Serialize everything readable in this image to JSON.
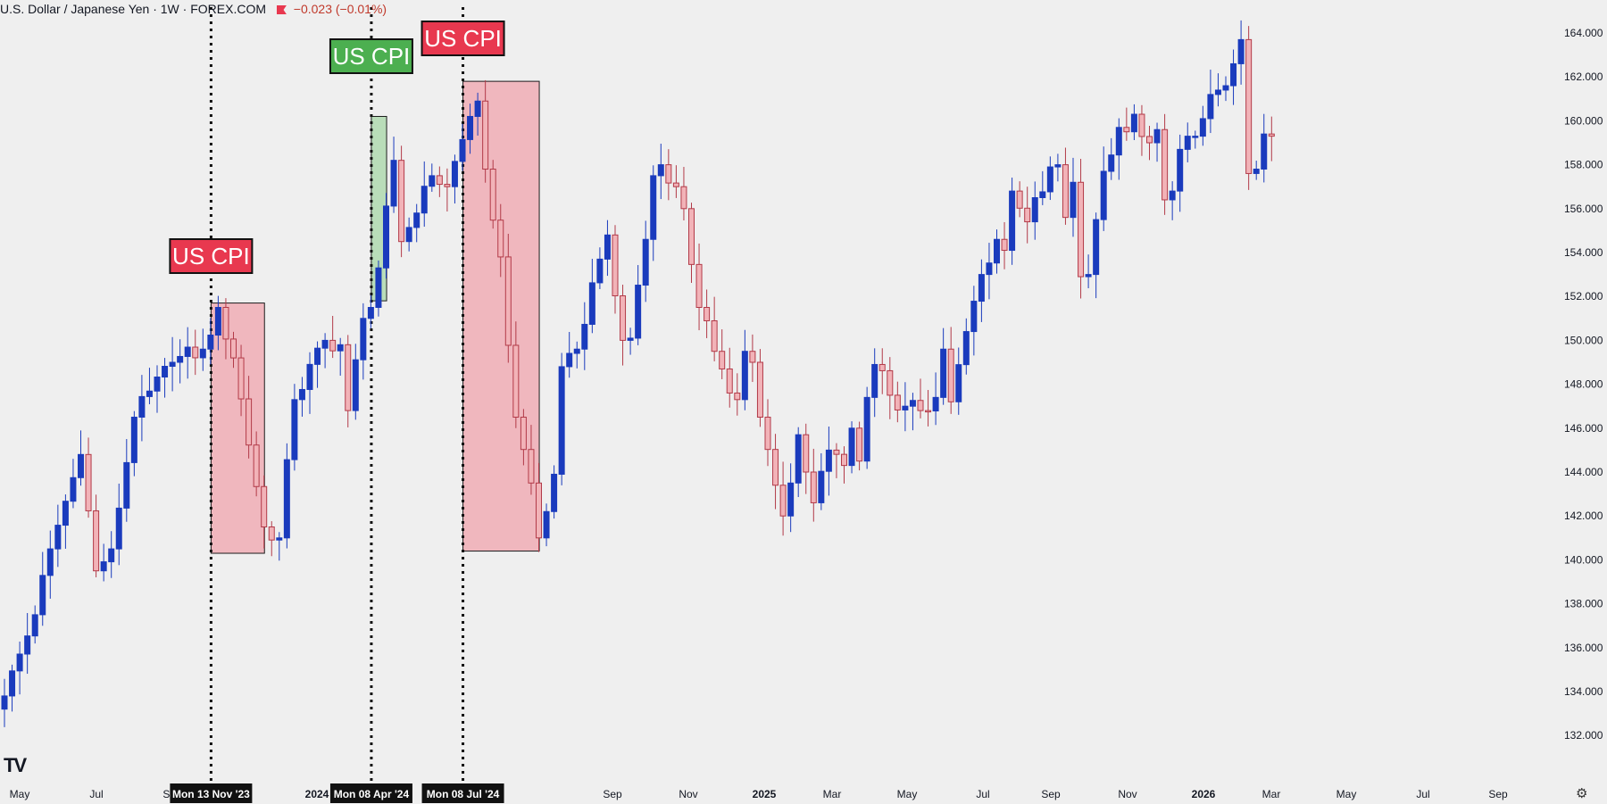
{
  "header": {
    "symbol": "U.S. Dollar / Japanese Yen · 1W · FOREX.COM",
    "change": "−0.023 (−0.01%)"
  },
  "annotations": {
    "label_1": "US CPI",
    "label_2": "US CPI",
    "label_3": "US CPI",
    "date_1": "Mon 13 Nov '23",
    "date_2": "Mon 08 Apr '24",
    "date_3": "Mon 08 Jul '24"
  },
  "colors": {
    "background": "#efefef",
    "up_candle": "#1a3bbd",
    "down_candle": "#f2b3b8",
    "down_border": "#b23a48",
    "red_zone": "#f1b5bc",
    "green_zone": "#b7ddb7",
    "red_label": "#e8384f",
    "green_label": "#4caf50"
  },
  "icons": {
    "logo": "tradingview-logo-icon",
    "settings": "gear-icon"
  },
  "chart_data": {
    "type": "candlestick",
    "title": "U.S. Dollar / Japanese Yen · 1W · FOREX.COM",
    "ylim": [
      131,
      165
    ],
    "y_ticks": [
      "132.000",
      "134.000",
      "136.000",
      "138.000",
      "140.000",
      "142.000",
      "144.000",
      "146.000",
      "148.000",
      "150.000",
      "152.000",
      "154.000",
      "156.000",
      "158.000",
      "160.000",
      "162.000",
      "164.000"
    ],
    "x_ticks": [
      "May",
      "Jul",
      "Sep",
      "2024",
      "M",
      "Sep",
      "Nov",
      "2025",
      "Mar",
      "May",
      "Jul",
      "Sep",
      "Nov",
      "2026",
      "Mar",
      "May",
      "Jul",
      "Sep"
    ],
    "grid": false,
    "waypoints": [
      {
        "i": 0,
        "p": 133.8
      },
      {
        "i": 4,
        "p": 137.5
      },
      {
        "i": 6,
        "p": 140.5
      },
      {
        "i": 10,
        "p": 144.8
      },
      {
        "i": 12,
        "p": 139.5
      },
      {
        "i": 14,
        "p": 140.5
      },
      {
        "i": 17,
        "p": 146.5
      },
      {
        "i": 22,
        "p": 149.0
      },
      {
        "i": 26,
        "p": 149.6
      },
      {
        "i": 28,
        "p": 151.5
      },
      {
        "i": 30,
        "p": 149.2
      },
      {
        "i": 34,
        "p": 141.5
      },
      {
        "i": 36,
        "p": 141.0
      },
      {
        "i": 38,
        "p": 147.3
      },
      {
        "i": 42,
        "p": 150.0
      },
      {
        "i": 44,
        "p": 149.8
      },
      {
        "i": 45,
        "p": 146.8
      },
      {
        "i": 47,
        "p": 151.0
      },
      {
        "i": 48,
        "p": 151.5
      },
      {
        "i": 49,
        "p": 153.3
      },
      {
        "i": 51,
        "p": 158.2
      },
      {
        "i": 52,
        "p": 154.5
      },
      {
        "i": 54,
        "p": 155.8
      },
      {
        "i": 56,
        "p": 157.5
      },
      {
        "i": 58,
        "p": 157.0
      },
      {
        "i": 61,
        "p": 160.2
      },
      {
        "i": 62,
        "p": 160.9
      },
      {
        "i": 63,
        "p": 157.8
      },
      {
        "i": 65,
        "p": 153.8
      },
      {
        "i": 67,
        "p": 146.5
      },
      {
        "i": 69,
        "p": 143.5
      },
      {
        "i": 70,
        "p": 141.0
      },
      {
        "i": 71,
        "p": 142.2
      },
      {
        "i": 72,
        "p": 143.9
      },
      {
        "i": 73,
        "p": 148.8
      },
      {
        "i": 75,
        "p": 149.6
      },
      {
        "i": 78,
        "p": 153.7
      },
      {
        "i": 79,
        "p": 154.8
      },
      {
        "i": 81,
        "p": 150.0
      },
      {
        "i": 82,
        "p": 150.1
      },
      {
        "i": 84,
        "p": 154.6
      },
      {
        "i": 85,
        "p": 157.5
      },
      {
        "i": 86,
        "p": 158.0
      },
      {
        "i": 88,
        "p": 157.0
      },
      {
        "i": 89,
        "p": 156.0
      },
      {
        "i": 91,
        "p": 151.5
      },
      {
        "i": 93,
        "p": 149.5
      },
      {
        "i": 95,
        "p": 147.6
      },
      {
        "i": 96,
        "p": 147.3
      },
      {
        "i": 97,
        "p": 149.5
      },
      {
        "i": 98,
        "p": 149.0
      },
      {
        "i": 99,
        "p": 146.5
      },
      {
        "i": 101,
        "p": 143.4
      },
      {
        "i": 102,
        "p": 142.0
      },
      {
        "i": 103,
        "p": 143.5
      },
      {
        "i": 104,
        "p": 145.7
      },
      {
        "i": 105,
        "p": 144.0
      },
      {
        "i": 106,
        "p": 142.6
      },
      {
        "i": 108,
        "p": 145.0
      },
      {
        "i": 110,
        "p": 144.3
      },
      {
        "i": 111,
        "p": 146.0
      },
      {
        "i": 112,
        "p": 144.5
      },
      {
        "i": 113,
        "p": 147.4
      },
      {
        "i": 114,
        "p": 148.9
      },
      {
        "i": 116,
        "p": 147.5
      },
      {
        "i": 118,
        "p": 147.0
      },
      {
        "i": 120,
        "p": 146.8
      },
      {
        "i": 122,
        "p": 147.4
      },
      {
        "i": 123,
        "p": 149.6
      },
      {
        "i": 124,
        "p": 147.2
      },
      {
        "i": 126,
        "p": 150.4
      },
      {
        "i": 128,
        "p": 153.0
      },
      {
        "i": 130,
        "p": 154.6
      },
      {
        "i": 131,
        "p": 154.1
      },
      {
        "i": 132,
        "p": 156.8
      },
      {
        "i": 134,
        "p": 155.4
      },
      {
        "i": 135,
        "p": 156.5
      },
      {
        "i": 137,
        "p": 157.9
      },
      {
        "i": 138,
        "p": 158.0
      },
      {
        "i": 139,
        "p": 155.6
      },
      {
        "i": 140,
        "p": 157.2
      },
      {
        "i": 141,
        "p": 152.9
      },
      {
        "i": 142,
        "p": 153.0
      },
      {
        "i": 143,
        "p": 155.5
      },
      {
        "i": 144,
        "p": 157.7
      },
      {
        "i": 146,
        "p": 159.7
      },
      {
        "i": 147,
        "p": 159.5
      },
      {
        "i": 148,
        "p": 160.3
      },
      {
        "i": 150,
        "p": 159.0
      },
      {
        "i": 151,
        "p": 159.6
      },
      {
        "i": 152,
        "p": 156.4
      },
      {
        "i": 153,
        "p": 156.8
      },
      {
        "i": 154,
        "p": 158.7
      },
      {
        "i": 155,
        "p": 159.3
      },
      {
        "i": 156,
        "p": 159.3
      },
      {
        "i": 157,
        "p": 160.1
      },
      {
        "i": 158,
        "p": 161.2
      },
      {
        "i": 159,
        "p": 161.4
      },
      {
        "i": 160,
        "p": 161.6
      },
      {
        "i": 161,
        "p": 162.6
      },
      {
        "i": 162,
        "p": 163.7
      },
      {
        "i": 163,
        "p": 157.6
      },
      {
        "i": 164,
        "p": 157.8
      },
      {
        "i": 165,
        "p": 159.4
      },
      {
        "i": 166,
        "p": 159.3
      }
    ],
    "events": [
      {
        "label": "US CPI",
        "date": "Mon 13 Nov '23",
        "direction": "down",
        "bar_index": 28,
        "price_from": 151.7,
        "price_to": 140.3
      },
      {
        "label": "US CPI",
        "date": "Mon 08 Apr '24",
        "direction": "up",
        "bar_index": 49,
        "price_from": 151.8,
        "price_to": 160.2
      },
      {
        "label": "US CPI",
        "date": "Mon 08 Jul '24",
        "direction": "down",
        "bar_index": 61,
        "price_from": 161.8,
        "price_to": 140.4
      }
    ]
  }
}
